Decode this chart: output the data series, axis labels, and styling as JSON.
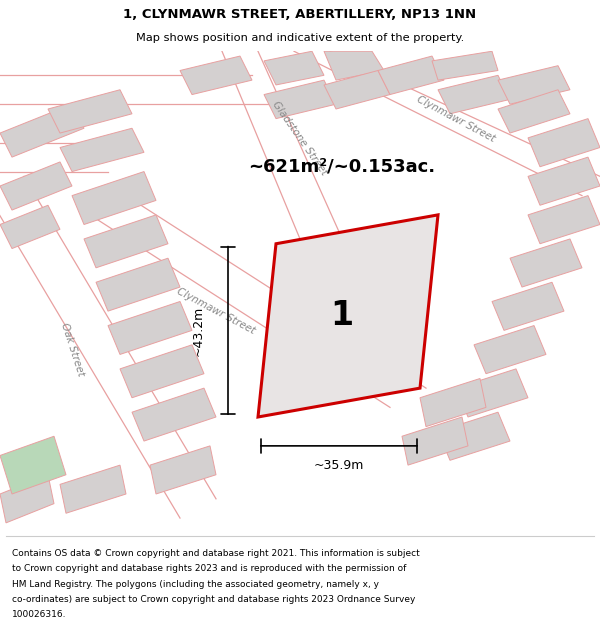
{
  "title_line1": "1, CLYNMAWR STREET, ABERTILLERY, NP13 1NN",
  "title_line2": "Map shows position and indicative extent of the property.",
  "area_text": "~621m²/~0.153ac.",
  "property_number": "1",
  "dim_width": "~35.9m",
  "dim_height": "~43.2m",
  "footer_lines": [
    "Contains OS data © Crown copyright and database right 2021. This information is subject",
    "to Crown copyright and database rights 2023 and is reproduced with the permission of",
    "HM Land Registry. The polygons (including the associated geometry, namely x, y",
    "co-ordinates) are subject to Crown copyright and database rights 2023 Ordnance Survey",
    "100026316."
  ],
  "map_bg": "#f0eded",
  "road_color": "#ffffff",
  "building_color": "#d4d0d0",
  "building_edge": "#e8a0a0",
  "property_fill": "#e8e4e4",
  "property_edge": "#cc0000",
  "street_color": "#e8a0a0",
  "footer_bg": "#ffffff",
  "title_bg": "#ffffff",
  "green_area": "#b8d8b8",
  "separator_color": "#cccccc"
}
